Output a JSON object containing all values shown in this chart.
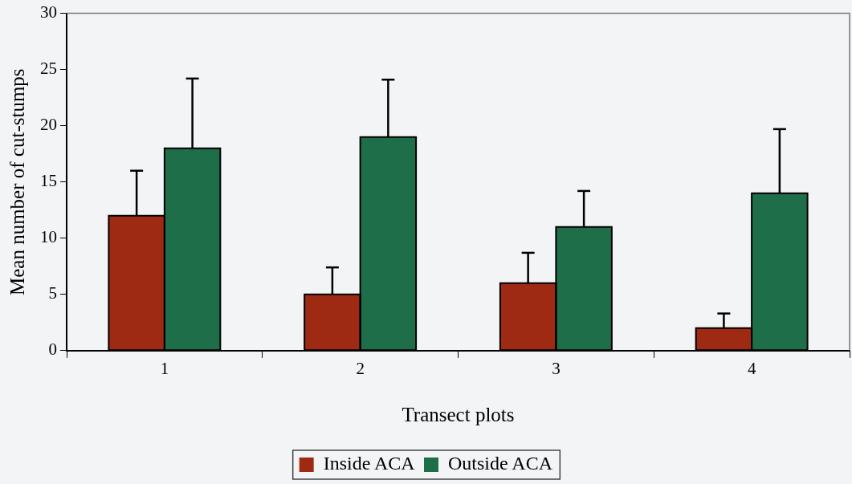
{
  "chart_data": {
    "type": "bar",
    "xlabel": "Transect plots",
    "ylabel": "Mean number of cut-stumps",
    "categories": [
      "1",
      "2",
      "3",
      "4"
    ],
    "series": [
      {
        "name": "Inside ACA",
        "color": "#9e2a14",
        "values": [
          12,
          5,
          6,
          2
        ],
        "errors": [
          [
            12,
            16
          ],
          [
            5,
            7.4
          ],
          [
            6,
            8.7
          ],
          [
            2,
            3.3
          ]
        ]
      },
      {
        "name": "Outside ACA",
        "color": "#1f6e4a",
        "values": [
          18,
          19,
          11,
          14
        ],
        "errors": [
          [
            18,
            24.2
          ],
          [
            19,
            24.1
          ],
          [
            11,
            14.2
          ],
          [
            14,
            19.7
          ]
        ]
      }
    ],
    "ylim": [
      0,
      30
    ],
    "yticks": [
      0,
      5,
      10,
      15,
      20,
      25,
      30
    ],
    "grid": false,
    "legend": "bottom"
  }
}
